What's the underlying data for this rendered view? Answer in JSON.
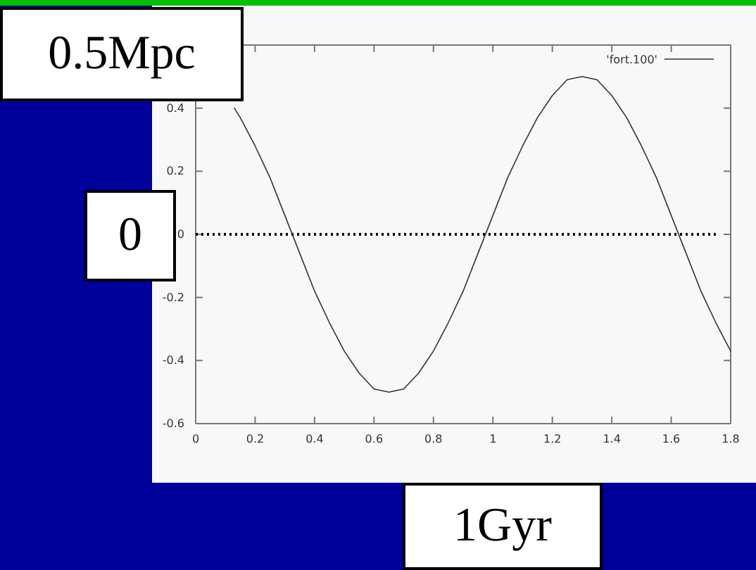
{
  "chart_data": {
    "type": "line",
    "x": [
      0.13,
      0.15,
      0.2,
      0.25,
      0.3,
      0.35,
      0.4,
      0.45,
      0.5,
      0.55,
      0.6,
      0.65,
      0.7,
      0.75,
      0.8,
      0.85,
      0.9,
      0.95,
      1,
      1.05,
      1.1,
      1.15,
      1.2,
      1.25,
      1.3,
      1.35,
      1.4,
      1.45,
      1.5,
      1.55,
      1.6,
      1.65,
      1.7,
      1.75,
      1.8
    ],
    "series": [
      {
        "name": "'fort.100'",
        "color": "#333333",
        "line_style": "solid",
        "values": [
          0.4,
          0.37,
          0.28,
          0.18,
          0.06,
          -0.06,
          -0.18,
          -0.28,
          -0.37,
          -0.44,
          -0.49,
          -0.5,
          -0.49,
          -0.44,
          -0.37,
          -0.28,
          -0.18,
          -0.06,
          0.06,
          0.18,
          0.28,
          0.37,
          0.44,
          0.49,
          0.5,
          0.49,
          0.44,
          0.37,
          0.28,
          0.18,
          0.06,
          -0.06,
          -0.18,
          -0.28,
          -0.37
        ]
      },
      {
        "color": "#000000",
        "line_style": "dotted",
        "x": [
          0,
          1.76
        ],
        "values": [
          0,
          0
        ]
      }
    ],
    "xlim": [
      0,
      1.8
    ],
    "xticks": [
      0,
      0.2,
      0.4,
      0.6,
      0.8,
      1,
      1.2,
      1.4,
      1.6,
      1.8
    ],
    "ylim": [
      -0.6,
      0.6
    ],
    "yticks": [
      -0.6,
      -0.4,
      -0.2,
      0,
      0.2,
      0.4,
      {
        "value": 0.6,
        "label": null
      }
    ],
    "grid": false,
    "legend": "top right",
    "marker": "none",
    "annotations": [
      "0.5Mpc",
      "0",
      "1Gyr"
    ]
  }
}
